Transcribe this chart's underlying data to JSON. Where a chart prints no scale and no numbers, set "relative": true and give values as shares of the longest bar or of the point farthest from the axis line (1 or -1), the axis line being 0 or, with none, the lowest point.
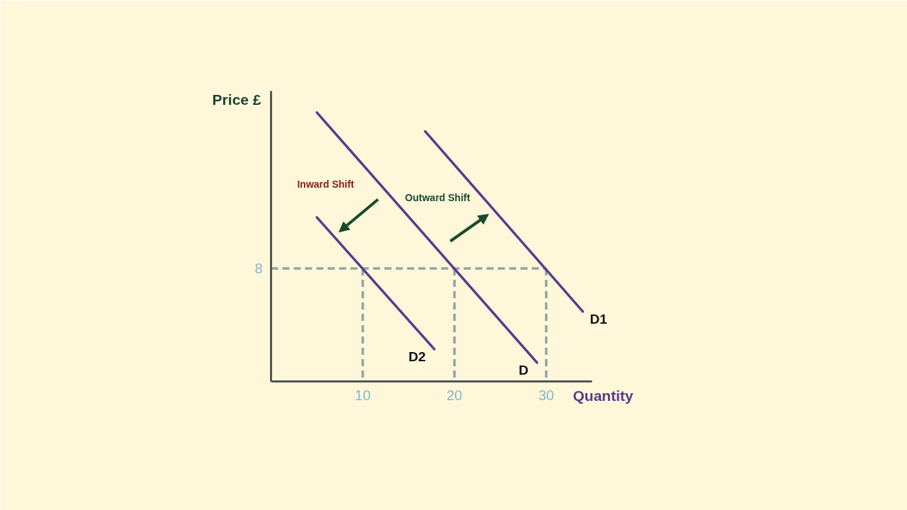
{
  "chart_data": {
    "type": "line",
    "relative": true,
    "xlabel": "Quantity",
    "ylabel": "Price £",
    "xlim": [
      0,
      35
    ],
    "xticks": [
      10,
      20,
      30
    ],
    "tick_labels": "x",
    "grid": false,
    "series": [
      {
        "color": "#95a3a2",
        "line_style": "dashed",
        "x": [
          0,
          30
        ],
        "values": [
          0.42,
          0.42
        ]
      },
      {
        "color": "#95a3a2",
        "line_style": "dashed",
        "x": [
          10,
          10
        ],
        "values": [
          0.42,
          0
        ]
      },
      {
        "color": "#95a3a2",
        "line_style": "dashed",
        "x": [
          20,
          20
        ],
        "values": [
          0.42,
          0
        ]
      },
      {
        "color": "#95a3a2",
        "line_style": "dashed",
        "x": [
          30,
          30
        ],
        "values": [
          0.42,
          0
        ]
      },
      {
        "name": "D2",
        "color": "#5b3a8c",
        "x": [
          5,
          17.8
        ],
        "values": [
          0.61,
          0.12
        ]
      },
      {
        "name": "D",
        "color": "#5b3a8c",
        "x": [
          5,
          29
        ],
        "values": [
          1,
          0.07
        ]
      },
      {
        "name": "D1",
        "color": "#5b3a8c",
        "x": [
          16.8,
          34
        ],
        "values": [
          0.93,
          0.26
        ]
      }
    ],
    "annotations": [
      {
        "text": "8",
        "x": 0,
        "y": 0.42
      },
      "Inward Shift",
      "Outward Shift"
    ]
  }
}
